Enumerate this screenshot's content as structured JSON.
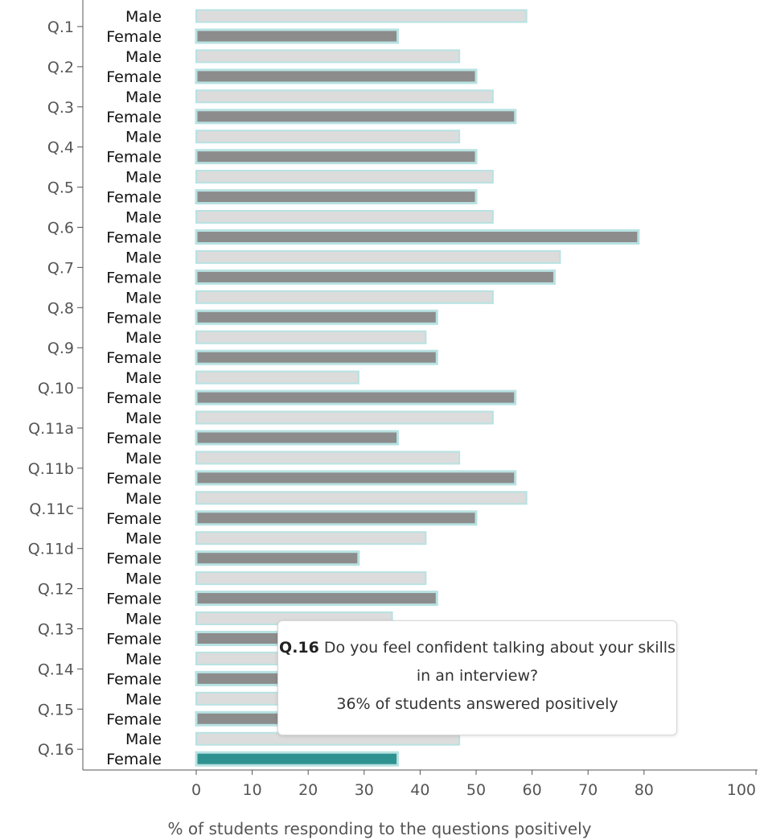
{
  "chart_data": {
    "type": "bar",
    "orientation": "horizontal",
    "categories": [
      "Q.1",
      "Q.2",
      "Q.3",
      "Q.4",
      "Q.5",
      "Q.6",
      "Q.7",
      "Q.8",
      "Q.9",
      "Q.10",
      "Q.11a",
      "Q.11b",
      "Q.11c",
      "Q.11d",
      "Q.12",
      "Q.13",
      "Q.14",
      "Q.15",
      "Q.16"
    ],
    "series": [
      {
        "name": "Male",
        "values": [
          59,
          47,
          53,
          47,
          53,
          53,
          65,
          53,
          41,
          29,
          53,
          47,
          59,
          41,
          41,
          35,
          40,
          43,
          47
        ]
      },
      {
        "name": "Female",
        "values": [
          36,
          50,
          57,
          50,
          50,
          79,
          64,
          43,
          43,
          57,
          36,
          57,
          50,
          29,
          43,
          41,
          36,
          41,
          36
        ]
      }
    ],
    "highlight": {
      "category": "Q.16",
      "series": "Female"
    },
    "xlabel": "% of students responding to the questions positively",
    "xlim": [
      0,
      100
    ],
    "xticks": [
      0,
      10,
      20,
      30,
      40,
      50,
      60,
      70,
      80,
      100
    ],
    "colors": {
      "male_fill": "#dcdcdc",
      "female_fill": "#8c8c8c",
      "highlight_fill": "#2e9290",
      "outline": "#b8e2e2"
    }
  },
  "tooltip": {
    "question": "Q.16",
    "text": "Do you feel confident talking about your skills in an interview?",
    "stat": "36% of students answered positively"
  }
}
